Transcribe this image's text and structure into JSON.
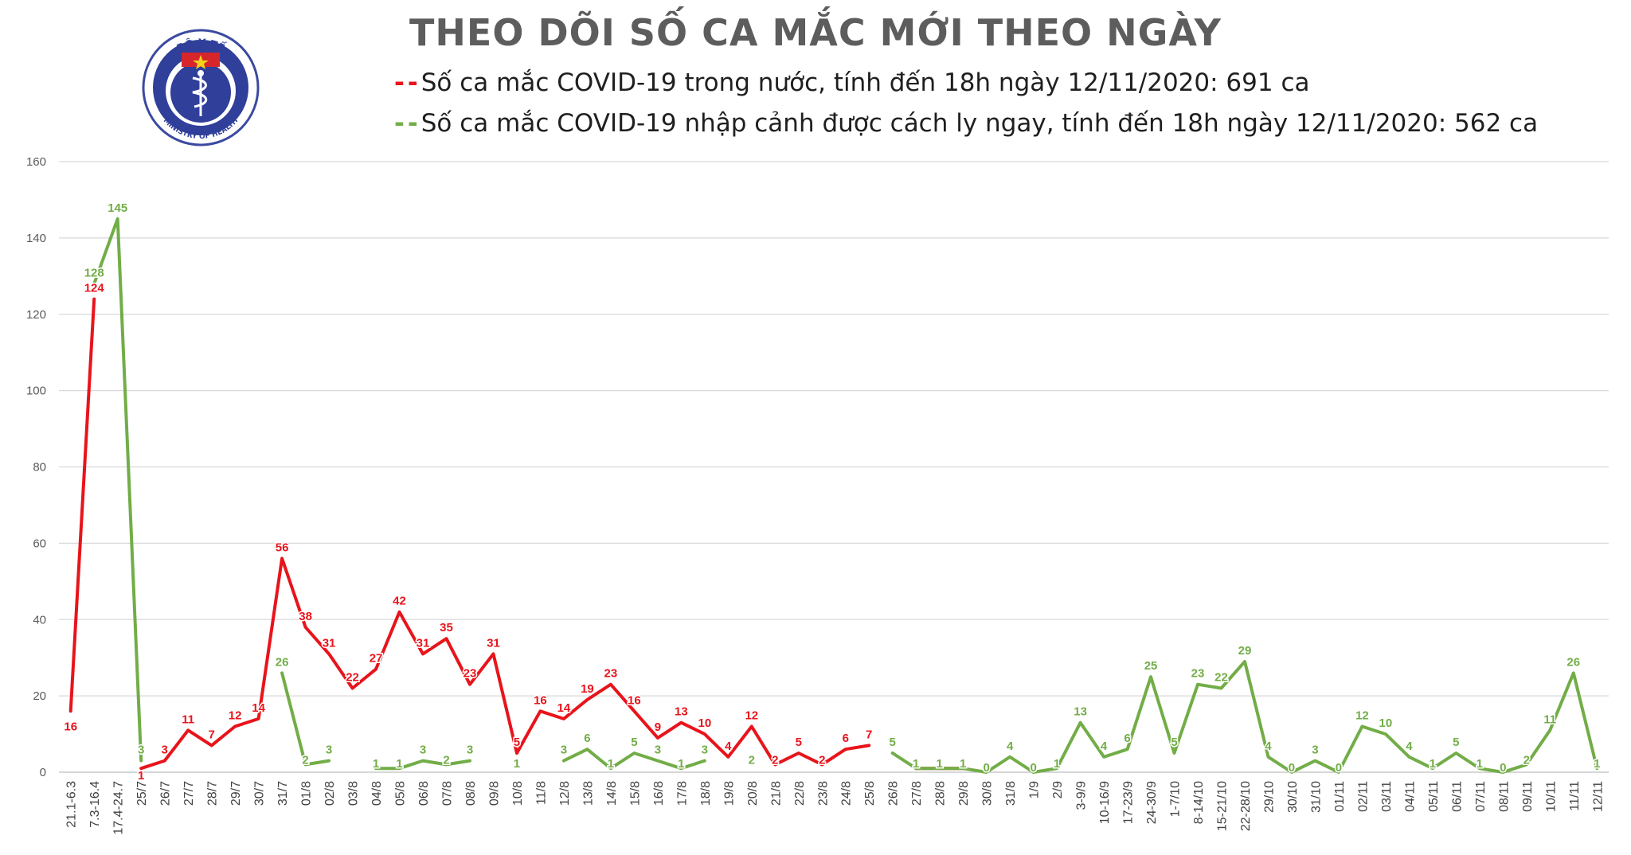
{
  "title": "THEO DÕI SỐ CA MẮC MỚI THEO NGÀY",
  "logo": {
    "top_text": "BỘ Y TẾ",
    "bottom_text": "MINISTRY OF HEALTH"
  },
  "colors": {
    "domestic": "#e8141b",
    "imported": "#72ad47",
    "grid": "#d9d9d9",
    "title": "#5d5d5d"
  },
  "legend": [
    {
      "marker": "-",
      "label": "Số ca mắc COVID-19 trong nước, tính đến 18h ngày 12/11/2020: 691 ca",
      "color": "#e8141b"
    },
    {
      "marker": "-",
      "label": "Số ca mắc COVID-19 nhập cảnh được cách ly ngay, tính đến 18h ngày 12/11/2020: 562 ca",
      "color": "#72ad47"
    }
  ],
  "chart_data": {
    "type": "line",
    "title": "THEO DÕI SỐ CA MẮC MỚI THEO NGÀY",
    "ylim": [
      0,
      160
    ],
    "yticks": [
      0,
      20,
      40,
      60,
      80,
      100,
      120,
      140,
      160
    ],
    "grid": true,
    "legend_position": "top",
    "categories": [
      "21.1-6.3",
      "7.3-16.4",
      "17.4-24.7",
      "25/7",
      "26/7",
      "27/7",
      "28/7",
      "29/7",
      "30/7",
      "31/7",
      "01/8",
      "02/8",
      "03/8",
      "04/8",
      "05/8",
      "06/8",
      "07/8",
      "08/8",
      "09/8",
      "10/8",
      "11/8",
      "12/8",
      "13/8",
      "14/8",
      "15/8",
      "16/8",
      "17/8",
      "18/8",
      "19/8",
      "20/8",
      "21/8",
      "22/8",
      "23/8",
      "24/8",
      "25/8",
      "26/8",
      "27/8",
      "28/8",
      "29/8",
      "30/8",
      "31/8",
      "1/9",
      "2/9",
      "3-9/9",
      "10-16/9",
      "17-23/9",
      "24-30/9",
      "1-7/10",
      "8-14/10",
      "15-21/10",
      "22-28/10",
      "29/10",
      "30/10",
      "31/10",
      "01/11",
      "02/11",
      "03/11",
      "04/11",
      "05/11",
      "06/11",
      "07/11",
      "08/11",
      "09/11",
      "10/11",
      "11/11",
      "12/11"
    ],
    "series": [
      {
        "name": "Số ca mắc COVID-19 trong nước, tính đến 18h ngày 12/11/2020: 691 ca",
        "color": "#e8141b",
        "values": [
          16,
          124,
          null,
          1,
          3,
          11,
          7,
          12,
          14,
          56,
          38,
          31,
          22,
          27,
          42,
          31,
          35,
          23,
          31,
          5,
          16,
          14,
          19,
          23,
          16,
          9,
          13,
          10,
          4,
          12,
          2,
          5,
          2,
          6,
          7,
          null,
          1,
          1,
          1,
          null,
          null,
          null,
          1,
          null,
          null,
          null,
          null,
          null,
          null,
          null,
          null,
          null,
          null,
          null,
          null,
          null,
          null,
          null,
          null,
          null,
          null,
          null,
          null,
          null,
          null,
          null
        ]
      },
      {
        "name": "Số ca mắc COVID-19 nhập cảnh được cách ly ngay, tính đến 18h ngày 12/11/2020: 562 ca",
        "color": "#72ad47",
        "values": [
          null,
          128,
          145,
          3,
          null,
          null,
          null,
          null,
          null,
          26,
          2,
          3,
          null,
          1,
          1,
          3,
          2,
          3,
          null,
          1,
          null,
          3,
          6,
          1,
          5,
          3,
          1,
          3,
          null,
          2,
          null,
          null,
          null,
          null,
          null,
          5,
          1,
          1,
          1,
          0,
          4,
          0,
          1,
          13,
          4,
          6,
          25,
          5,
          23,
          22,
          29,
          4,
          0,
          3,
          0,
          12,
          10,
          4,
          1,
          5,
          1,
          0,
          2,
          11,
          26,
          1
        ]
      }
    ]
  }
}
